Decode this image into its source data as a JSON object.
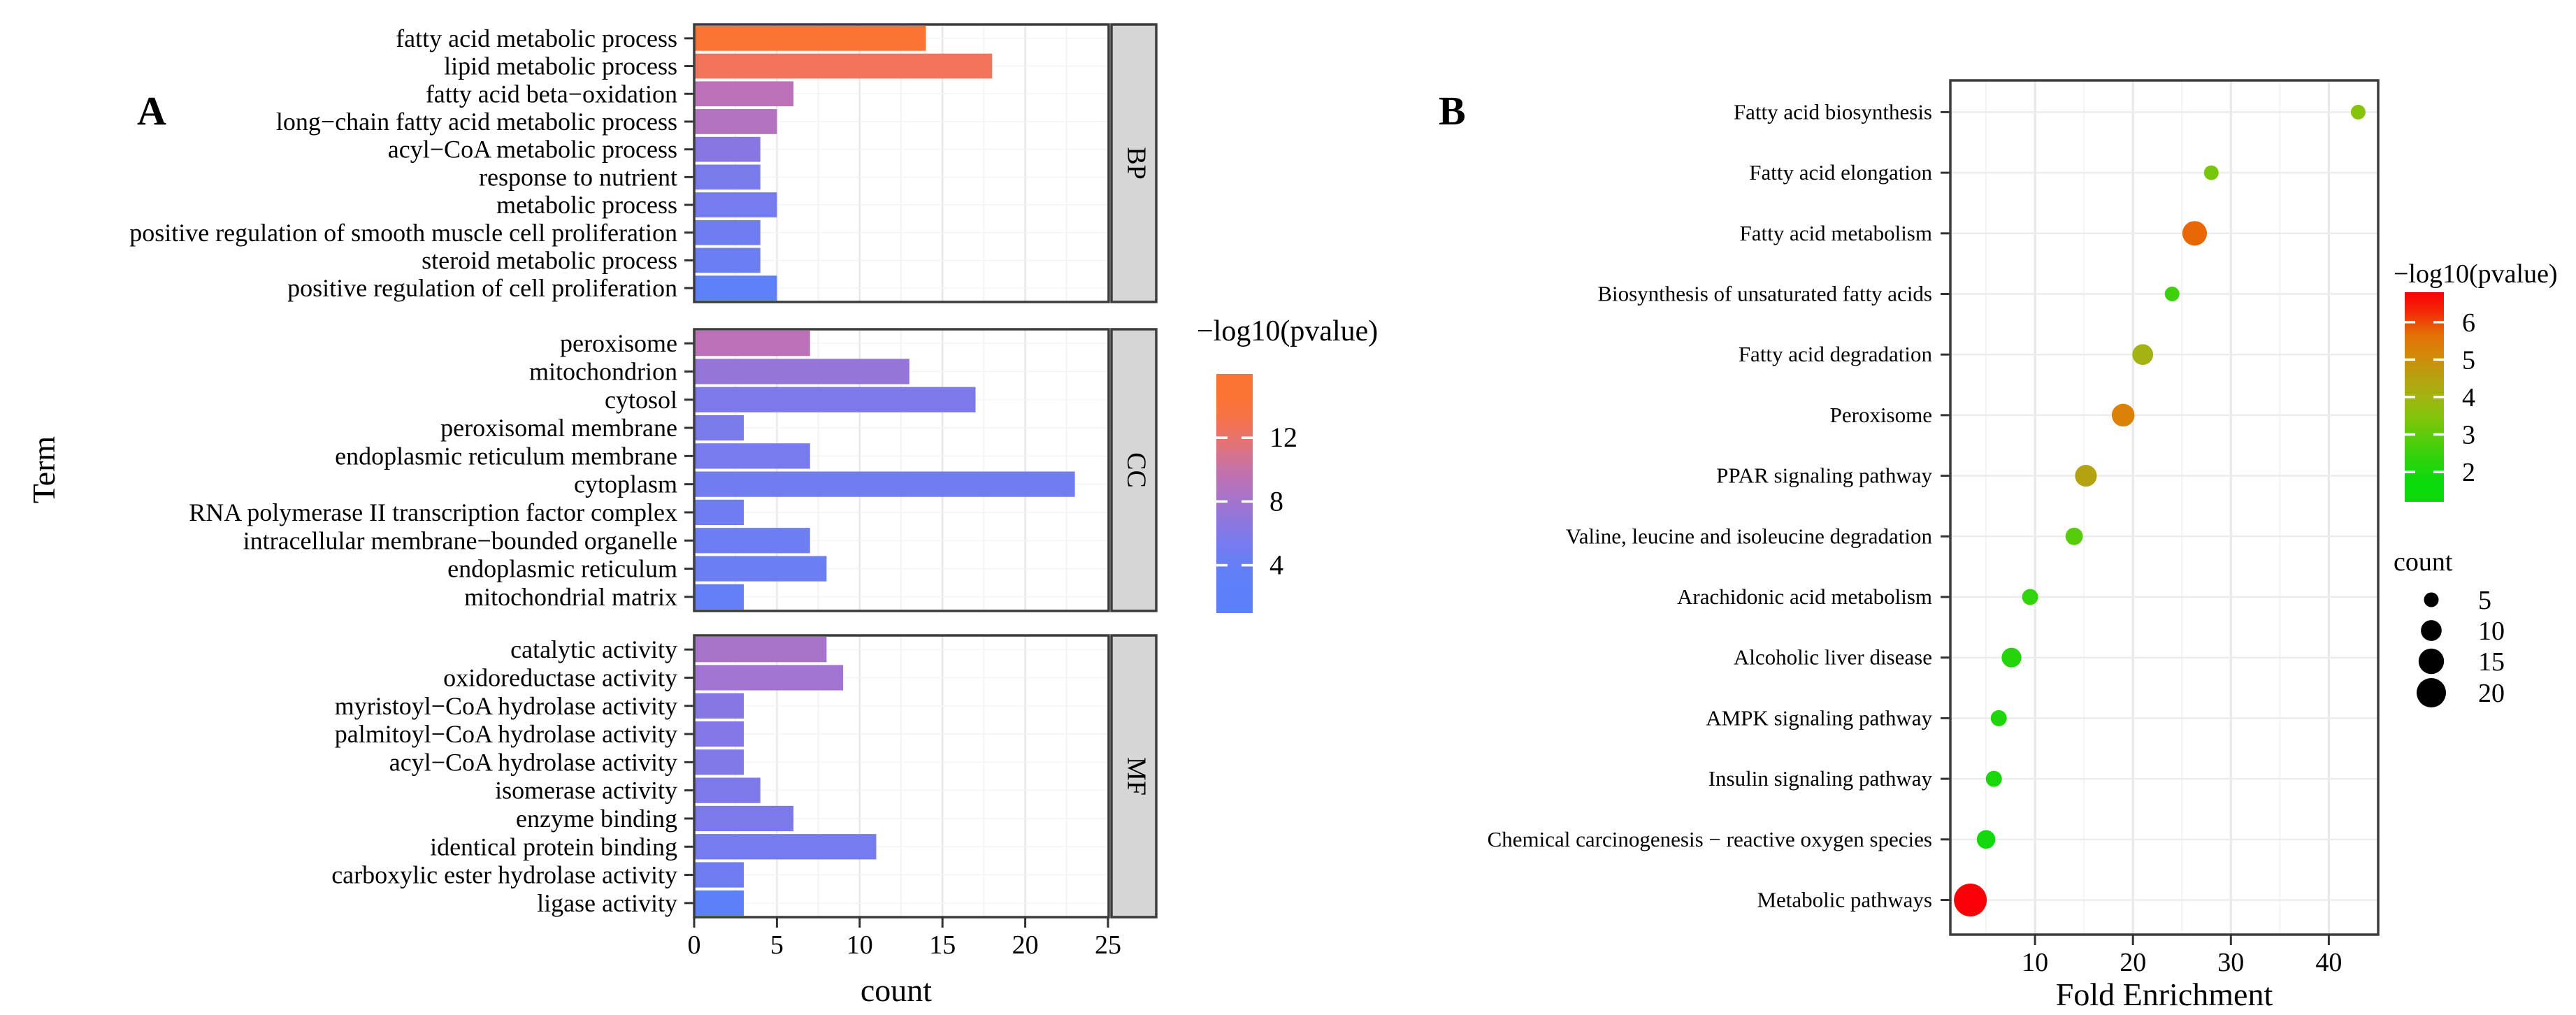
{
  "chart_data": [
    {
      "type": "bar",
      "panel_letter": "A",
      "xlabel": "count",
      "ylabel": "Term",
      "x_ticks": [
        0,
        5,
        10,
        15,
        20,
        25
      ],
      "xlim": [
        0,
        26.5
      ],
      "grid": true,
      "legend_color": {
        "title": "−log10(pvalue)",
        "ticks": [
          12,
          8,
          4
        ],
        "bar_top_value": 16,
        "bar_bottom_value": 1
      },
      "color_scale_stops": [
        [
          3.0,
          "#5C80FA"
        ],
        [
          4.5,
          "#6A7EF4"
        ],
        [
          6.0,
          "#7F79E9"
        ],
        [
          7.5,
          "#9B74D4"
        ],
        [
          9.5,
          "#BC72B8"
        ],
        [
          12.5,
          "#F2735A"
        ],
        [
          14.0,
          "#FC7433"
        ]
      ],
      "facets": [
        {
          "label": "BP",
          "terms": [
            {
              "term": "fatty acid metabolic process",
              "count": 14,
              "neg_log10_pvalue": 14.0
            },
            {
              "term": "lipid metabolic process",
              "count": 18,
              "neg_log10_pvalue": 12.5
            },
            {
              "term": "fatty acid beta−oxidation",
              "count": 6,
              "neg_log10_pvalue": 9.5
            },
            {
              "term": "long−chain fatty acid metabolic process",
              "count": 5,
              "neg_log10_pvalue": 9.0
            },
            {
              "term": "acyl−CoA metabolic process",
              "count": 4,
              "neg_log10_pvalue": 6.5
            },
            {
              "term": "response to nutrient",
              "count": 4,
              "neg_log10_pvalue": 5.6
            },
            {
              "term": "metabolic process",
              "count": 5,
              "neg_log10_pvalue": 5.2
            },
            {
              "term": "positive regulation of smooth muscle cell proliferation",
              "count": 4,
              "neg_log10_pvalue": 4.9
            },
            {
              "term": "steroid metabolic process",
              "count": 4,
              "neg_log10_pvalue": 4.6
            },
            {
              "term": "positive regulation of cell proliferation",
              "count": 5,
              "neg_log10_pvalue": 3.2
            }
          ]
        },
        {
          "label": "CC",
          "terms": [
            {
              "term": "peroxisome",
              "count": 7,
              "neg_log10_pvalue": 9.5
            },
            {
              "term": "mitochondrion",
              "count": 13,
              "neg_log10_pvalue": 7.2
            },
            {
              "term": "cytosol",
              "count": 17,
              "neg_log10_pvalue": 5.9
            },
            {
              "term": "peroxisomal membrane",
              "count": 3,
              "neg_log10_pvalue": 5.7
            },
            {
              "term": "endoplasmic reticulum membrane",
              "count": 7,
              "neg_log10_pvalue": 5.5
            },
            {
              "term": "cytoplasm",
              "count": 23,
              "neg_log10_pvalue": 5.0
            },
            {
              "term": "RNA polymerase II transcription factor complex",
              "count": 3,
              "neg_log10_pvalue": 4.9
            },
            {
              "term": "intracellular membrane−bounded organelle",
              "count": 7,
              "neg_log10_pvalue": 4.7
            },
            {
              "term": "endoplasmic reticulum",
              "count": 8,
              "neg_log10_pvalue": 4.6
            },
            {
              "term": "mitochondrial matrix",
              "count": 3,
              "neg_log10_pvalue": 4.0
            }
          ]
        },
        {
          "label": "MF",
          "terms": [
            {
              "term": "catalytic activity",
              "count": 8,
              "neg_log10_pvalue": 8.2
            },
            {
              "term": "oxidoreductase activity",
              "count": 9,
              "neg_log10_pvalue": 7.8
            },
            {
              "term": "myristoyl−CoA hydrolase activity",
              "count": 3,
              "neg_log10_pvalue": 6.3
            },
            {
              "term": "palmitoyl−CoA hydrolase activity",
              "count": 3,
              "neg_log10_pvalue": 6.2
            },
            {
              "term": "acyl−CoA hydrolase activity",
              "count": 3,
              "neg_log10_pvalue": 6.1
            },
            {
              "term": "isomerase activity",
              "count": 4,
              "neg_log10_pvalue": 5.9
            },
            {
              "term": "enzyme binding",
              "count": 6,
              "neg_log10_pvalue": 5.8
            },
            {
              "term": "identical protein binding",
              "count": 11,
              "neg_log10_pvalue": 5.2
            },
            {
              "term": "carboxylic ester hydrolase activity",
              "count": 3,
              "neg_log10_pvalue": 4.8
            },
            {
              "term": "ligase activity",
              "count": 3,
              "neg_log10_pvalue": 3.0
            }
          ]
        }
      ]
    },
    {
      "type": "scatter",
      "panel_letter": "B",
      "xlabel": "Fold Enrichment",
      "x_ticks": [
        10,
        20,
        30,
        40
      ],
      "xlim": [
        1.3,
        45.2
      ],
      "grid": true,
      "legend_color": {
        "title": "−log10(pvalue)",
        "ticks": [
          6,
          5,
          4,
          3,
          2
        ],
        "bar_top_value": 6.8,
        "bar_bottom_value": 1.2
      },
      "legend_size": {
        "title": "count",
        "entries": [
          5,
          10,
          15,
          20
        ]
      },
      "color_scale_stops": [
        [
          1.8,
          "#0BDA0B"
        ],
        [
          2.6,
          "#3ED00C"
        ],
        [
          3.5,
          "#86C40A"
        ],
        [
          4.0,
          "#A2B313"
        ],
        [
          4.5,
          "#B5A211"
        ],
        [
          5.3,
          "#DC8108"
        ],
        [
          5.9,
          "#E96604"
        ],
        [
          6.5,
          "#FB0007"
        ]
      ],
      "rows": [
        {
          "pathway": "Fatty acid biosynthesis",
          "fold_enrichment": 43.0,
          "count": 5,
          "neg_log10_pvalue": 3.5
        },
        {
          "pathway": "Fatty acid elongation",
          "fold_enrichment": 28.0,
          "count": 5,
          "neg_log10_pvalue": 3.3
        },
        {
          "pathway": "Fatty acid metabolism",
          "fold_enrichment": 26.3,
          "count": 14,
          "neg_log10_pvalue": 5.9
        },
        {
          "pathway": "Biosynthesis of unsaturated fatty acids",
          "fold_enrichment": 24.0,
          "count": 5,
          "neg_log10_pvalue": 2.6
        },
        {
          "pathway": "Fatty acid degradation",
          "fold_enrichment": 21.0,
          "count": 10,
          "neg_log10_pvalue": 4.0
        },
        {
          "pathway": "Peroxisome",
          "fold_enrichment": 19.0,
          "count": 12,
          "neg_log10_pvalue": 5.3
        },
        {
          "pathway": "PPAR signaling pathway",
          "fold_enrichment": 15.2,
          "count": 11,
          "neg_log10_pvalue": 4.5
        },
        {
          "pathway": "Valine, leucine and isoleucine degradation",
          "fold_enrichment": 14.0,
          "count": 7,
          "neg_log10_pvalue": 2.9
        },
        {
          "pathway": "Arachidonic acid metabolism",
          "fold_enrichment": 9.5,
          "count": 6,
          "neg_log10_pvalue": 2.4
        },
        {
          "pathway": "Alcoholic liver disease",
          "fold_enrichment": 7.6,
          "count": 9,
          "neg_log10_pvalue": 2.2
        },
        {
          "pathway": "AMPK signaling pathway",
          "fold_enrichment": 6.3,
          "count": 6,
          "neg_log10_pvalue": 2.1
        },
        {
          "pathway": "Insulin signaling pathway",
          "fold_enrichment": 5.8,
          "count": 6,
          "neg_log10_pvalue": 2.0
        },
        {
          "pathway": "Chemical carcinogenesis − reactive oxygen species",
          "fold_enrichment": 5.0,
          "count": 8,
          "neg_log10_pvalue": 1.9
        },
        {
          "pathway": "Metabolic pathways",
          "fold_enrichment": 3.4,
          "count": 25,
          "neg_log10_pvalue": 6.5
        }
      ]
    }
  ]
}
